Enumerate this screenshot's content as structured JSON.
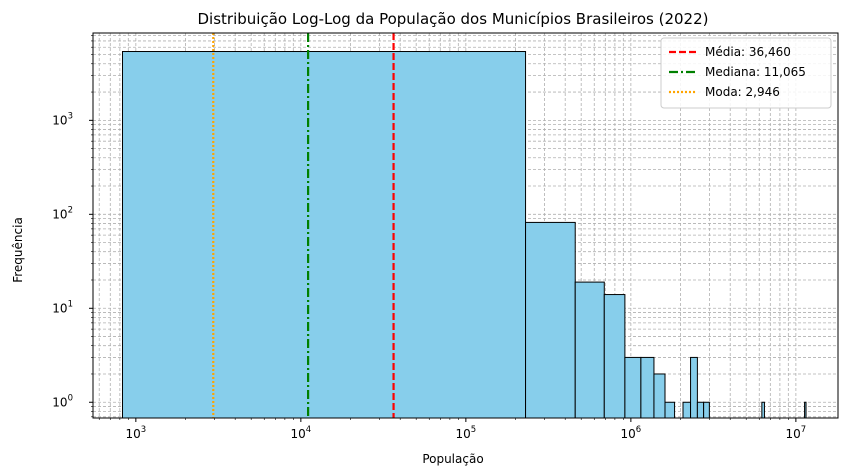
{
  "chart_data": {
    "type": "bar",
    "title": "Distribuição Log-Log da População dos Municípios Brasileiros (2022)",
    "xlabel": "População",
    "ylabel": "Frequência",
    "x_scale": "log",
    "y_scale": "log",
    "xlim": [
      550,
      18000000
    ],
    "ylim": [
      0.68,
      8500
    ],
    "grid": true,
    "legend_position": "top-right",
    "bar_color": "#87ceeb",
    "bar_edge_color": "#000000",
    "x_ticks": [
      {
        "value": 1000,
        "base": "10",
        "exp": "3"
      },
      {
        "value": 10000,
        "base": "10",
        "exp": "4"
      },
      {
        "value": 100000,
        "base": "10",
        "exp": "5"
      },
      {
        "value": 1000000,
        "base": "10",
        "exp": "6"
      },
      {
        "value": 10000000,
        "base": "10",
        "exp": "7"
      }
    ],
    "y_ticks": [
      {
        "value": 1,
        "base": "10",
        "exp": "0"
      },
      {
        "value": 10,
        "base": "10",
        "exp": "1"
      },
      {
        "value": 100,
        "base": "10",
        "exp": "2"
      },
      {
        "value": 1000,
        "base": "10",
        "exp": "3"
      }
    ],
    "bins": [
      {
        "x0": 830,
        "x1": 230000,
        "count": 5400
      },
      {
        "x0": 230000,
        "x1": 460000,
        "count": 82
      },
      {
        "x0": 460000,
        "x1": 690000,
        "count": 19
      },
      {
        "x0": 690000,
        "x1": 920000,
        "count": 14
      },
      {
        "x0": 920000,
        "x1": 1150000,
        "count": 3
      },
      {
        "x0": 1150000,
        "x1": 1380000,
        "count": 3
      },
      {
        "x0": 1380000,
        "x1": 1610000,
        "count": 2
      },
      {
        "x0": 1610000,
        "x1": 1840000,
        "count": 1
      },
      {
        "x0": 2070000,
        "x1": 2300000,
        "count": 1
      },
      {
        "x0": 2300000,
        "x1": 2530000,
        "count": 3
      },
      {
        "x0": 2530000,
        "x1": 2760000,
        "count": 1
      },
      {
        "x0": 2760000,
        "x1": 2990000,
        "count": 1
      },
      {
        "x0": 6220000,
        "x1": 6450000,
        "count": 1
      },
      {
        "x0": 11290000,
        "x1": 11520000,
        "count": 1
      }
    ],
    "reference_lines": [
      {
        "name": "Média: 36,460",
        "x": 36460,
        "color": "#ff0000",
        "style": "dashed"
      },
      {
        "name": "Mediana: 11,065",
        "x": 11065,
        "color": "#008000",
        "style": "dashdot"
      },
      {
        "name": "Moda: 2,946",
        "x": 2946,
        "color": "#ffa500",
        "style": "dotted"
      }
    ]
  }
}
